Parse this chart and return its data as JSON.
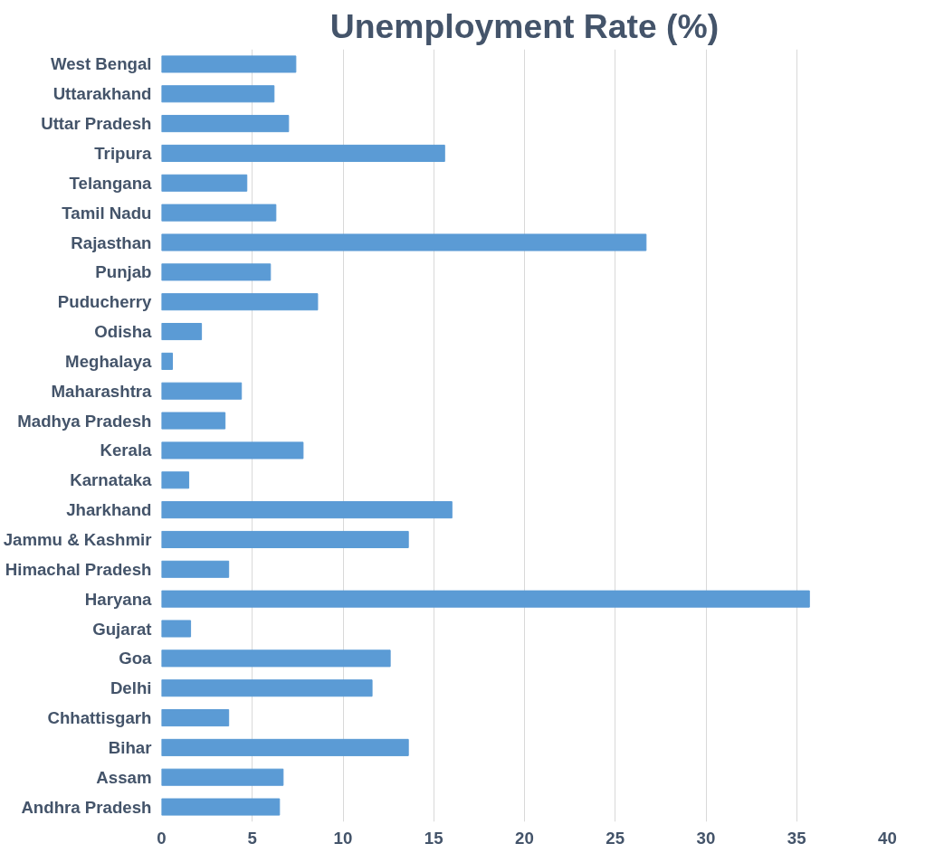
{
  "chart_data": {
    "type": "bar",
    "orientation": "horizontal",
    "title": "Unemployment Rate (%)",
    "categories": [
      "West Bengal",
      "Uttarakhand",
      "Uttar Pradesh",
      "Tripura",
      "Telangana",
      "Tamil Nadu",
      "Rajasthan",
      "Punjab",
      "Puducherry",
      "Odisha",
      "Meghalaya",
      "Maharashtra",
      "Madhya Pradesh",
      "Kerala",
      "Karnataka",
      "Jharkhand",
      "Jammu & Kashmir",
      "Himachal Pradesh",
      "Haryana",
      "Gujarat",
      "Goa",
      "Delhi",
      "Chhattisgarh",
      "Bihar",
      "Assam",
      "Andhra Pradesh"
    ],
    "values": [
      7.4,
      6.2,
      7.0,
      15.6,
      4.7,
      6.3,
      26.7,
      6.0,
      8.6,
      2.2,
      0.6,
      4.4,
      3.5,
      7.8,
      1.5,
      16.0,
      13.6,
      3.7,
      35.7,
      1.6,
      12.6,
      11.6,
      3.7,
      13.6,
      6.7,
      6.5
    ],
    "color": "#5b9bd5",
    "xlim": [
      0,
      40
    ],
    "xticks": [
      0,
      5,
      10,
      15,
      20,
      25,
      30,
      35,
      40
    ],
    "grid": "x"
  }
}
